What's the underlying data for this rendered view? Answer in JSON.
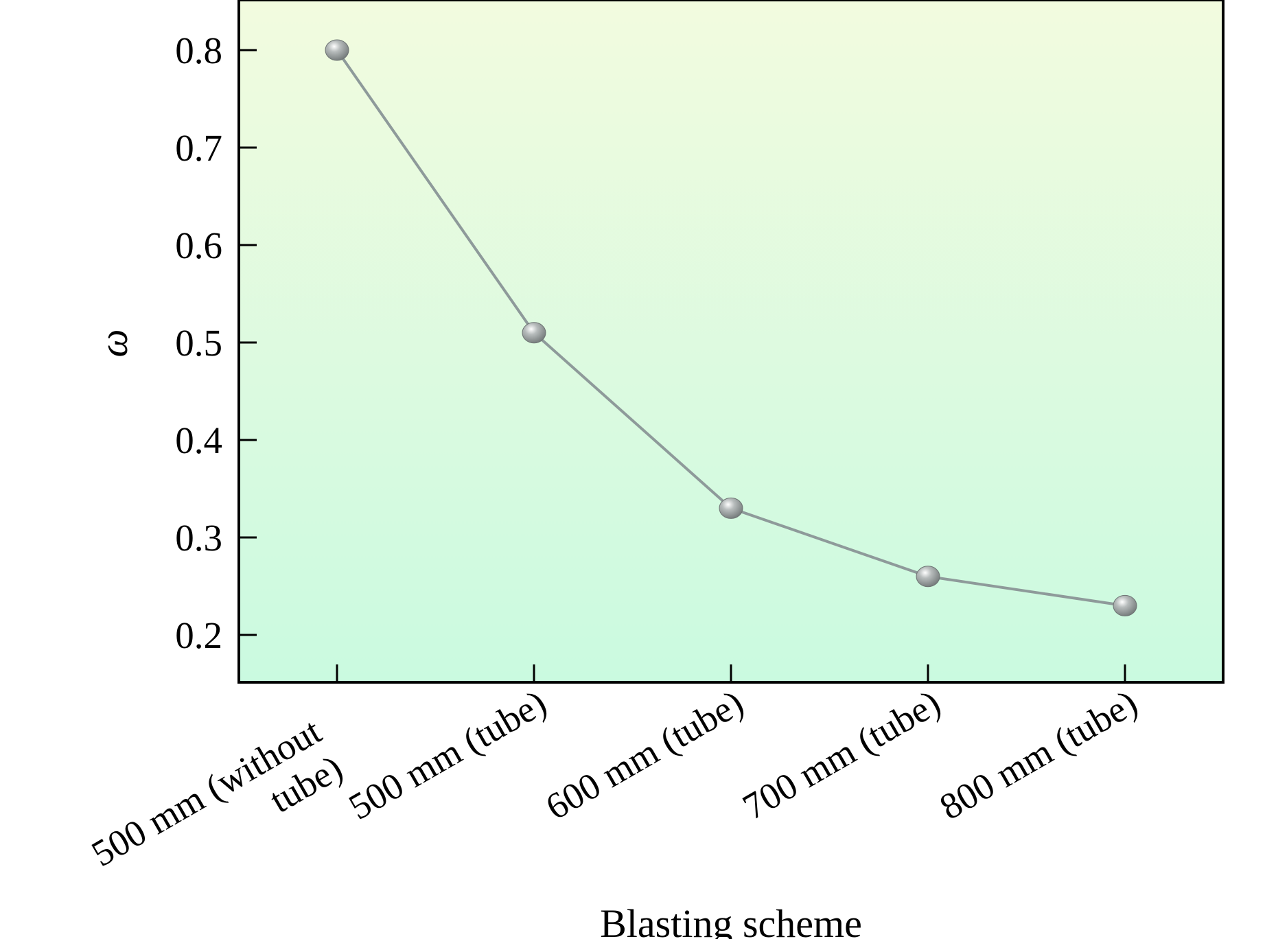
{
  "chart_data": {
    "type": "line",
    "title": "",
    "xlabel": "Blasting scheme",
    "ylabel": "ω",
    "ylim": [
      0.15,
      0.85
    ],
    "yticks": [
      0.2,
      0.3,
      0.4,
      0.5,
      0.6,
      0.7,
      0.8
    ],
    "ytick_labels": [
      "0.2",
      "0.3",
      "0.4",
      "0.5",
      "0.6",
      "0.7",
      "0.8"
    ],
    "categories": [
      [
        "500 mm (without",
        "tube)"
      ],
      [
        "500 mm (tube)"
      ],
      [
        "600 mm (tube)"
      ],
      [
        "700 mm (tube)"
      ],
      [
        "800 mm (tube)"
      ]
    ],
    "series": [
      {
        "name": "ω",
        "values": [
          0.8,
          0.51,
          0.33,
          0.26,
          0.23
        ]
      }
    ],
    "grid": false,
    "legend": "none"
  },
  "colors": {
    "line": "#8e9a9a",
    "marker_light": "#ffffff",
    "marker_mid": "#b7bcbc",
    "marker_dark": "#6e7474",
    "background_top": "#f2fbdf",
    "background_bottom": "#cafae0",
    "axis": "#000000"
  }
}
